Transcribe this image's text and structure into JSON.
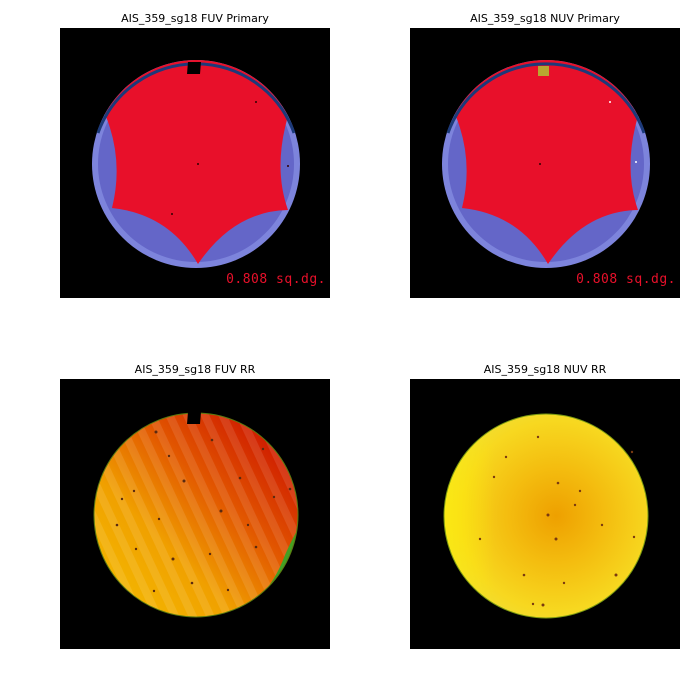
{
  "panels": [
    {
      "title": "AIS_359_sg18 FUV Primary",
      "area_label": "0.808 sq.dg.",
      "image": "primary coverage mask: blue detector disk with red coverage region, black notch at top"
    },
    {
      "title": "AIS_359_sg18 NUV Primary",
      "area_label": "0.808 sq.dg.",
      "image": "primary coverage mask: blue detector disk with red coverage region, yellow patch at top"
    },
    {
      "title": "AIS_359_sg18 FUV RR",
      "image": "relative response map: orange/red disk with stripes, green region lower right, black notch at top"
    },
    {
      "title": "AIS_359_sg18 NUV RR",
      "image": "relative response map: yellow disk, orange center, scattered dark pixels"
    }
  ],
  "colors": {
    "coverage": "#e8102a",
    "detector_disk": "#6466c8",
    "disk_edge": "#7d84dc",
    "rim": "#1c3a7a",
    "background": "#000000",
    "label": "#e8102a"
  }
}
